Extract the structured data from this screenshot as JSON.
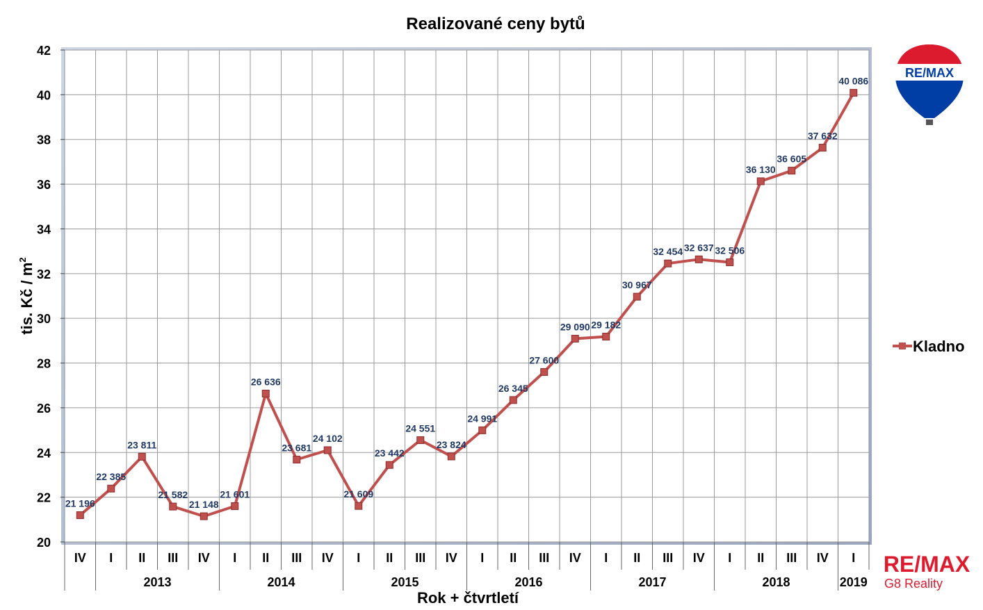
{
  "chart_data": {
    "type": "line",
    "title": "Realizované ceny bytů",
    "xlabel": "Rok + čtvrtletí",
    "ylabel": "tis. Kč / m",
    "ylabel_superscript": "2",
    "ylim": [
      20,
      42
    ],
    "yticks": [
      20,
      22,
      24,
      26,
      28,
      30,
      32,
      34,
      36,
      38,
      40,
      42
    ],
    "grid": true,
    "legend_position": "right",
    "quarters": [
      "IV",
      "I",
      "II",
      "III",
      "IV",
      "I",
      "II",
      "III",
      "IV",
      "I",
      "II",
      "III",
      "IV",
      "I",
      "II",
      "III",
      "IV",
      "I",
      "II",
      "III",
      "IV",
      "I",
      "II",
      "III",
      "IV",
      "I"
    ],
    "years": [
      {
        "label": "2013",
        "start": 1,
        "end": 4
      },
      {
        "label": "2014",
        "start": 5,
        "end": 8
      },
      {
        "label": "2015",
        "start": 9,
        "end": 12
      },
      {
        "label": "2016",
        "start": 13,
        "end": 16
      },
      {
        "label": "2017",
        "start": 17,
        "end": 20
      },
      {
        "label": "2018",
        "start": 21,
        "end": 24
      },
      {
        "label": "2019",
        "start": 25,
        "end": 25
      }
    ],
    "year_separators_after": [
      0,
      4,
      8,
      12,
      16,
      20,
      24
    ],
    "series": [
      {
        "name": "Kladno",
        "color": "#c0504d",
        "values": [
          21.196,
          22.385,
          23.811,
          21.582,
          21.148,
          21.601,
          26.636,
          23.681,
          24.102,
          21.609,
          23.442,
          24.551,
          23.824,
          24.991,
          26.345,
          27.6,
          29.09,
          29.182,
          30.967,
          32.454,
          32.637,
          32.506,
          36.13,
          36.605,
          37.632,
          40.086
        ],
        "labels": [
          "21 196",
          "22 385",
          "23 811",
          "21 582",
          "21 148",
          "21 601",
          "26 636",
          "23 681",
          "24 102",
          "21 609",
          "23 442",
          "24 551",
          "23 824",
          "24 991",
          "26 345",
          "27 600",
          "29 090",
          "29 182",
          "30 967",
          "32 454",
          "32 637",
          "32 506",
          "36 130",
          "36 605",
          "37 632",
          "40 086"
        ]
      }
    ]
  },
  "branding": {
    "balloon_text": "RE/MAX",
    "logo_text": "RE/MAX",
    "logo_subtext": "G8 Reality",
    "colors": {
      "red": "#dc1c2e",
      "blue": "#003da5"
    }
  }
}
